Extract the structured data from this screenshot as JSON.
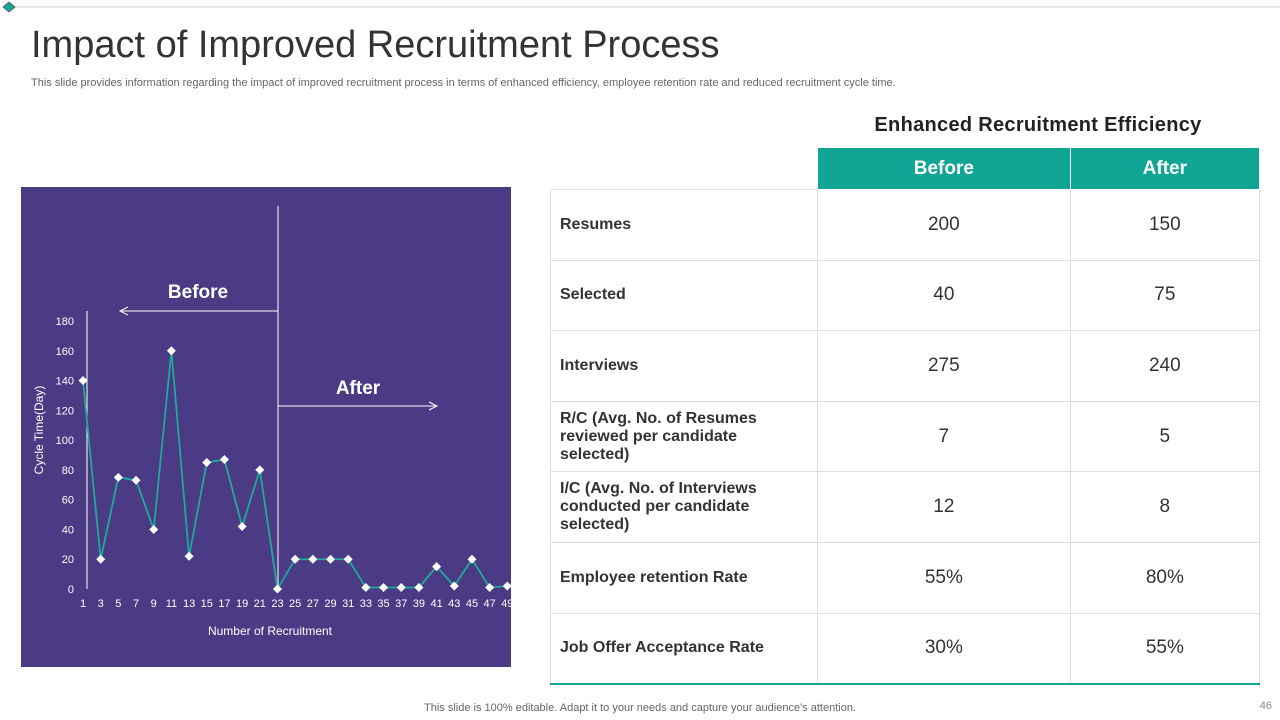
{
  "header": {
    "title": "Impact of Improved Recruitment Process",
    "subtitle": "This slide provides information regarding the impact of improved recruitment process in terms of enhanced efficiency, employee retention rate and reduced recruitment cycle time."
  },
  "chart_data": {
    "type": "line",
    "x_label": "Number of Recruitment",
    "y_label": "Cycle Time(Day)",
    "annotations": [
      "Before",
      "After"
    ],
    "categories": [
      "1",
      "3",
      "5",
      "7",
      "9",
      "11",
      "13",
      "15",
      "17",
      "19",
      "21",
      "23",
      "25",
      "27",
      "29",
      "31",
      "33",
      "35",
      "37",
      "39",
      "41",
      "43",
      "45",
      "47",
      "49"
    ],
    "series": [
      {
        "name": "Cycle Time(Day)",
        "color": "#1fa99c",
        "values": [
          140,
          20,
          75,
          73,
          40,
          160,
          22,
          85,
          87,
          42,
          80,
          0,
          20,
          20,
          20,
          20,
          1,
          1,
          1,
          1,
          15,
          2,
          20,
          1,
          2
        ]
      }
    ],
    "ylim": [
      0,
      180
    ],
    "yticks": [
      0,
      20,
      40,
      60,
      80,
      100,
      120,
      140,
      160,
      180
    ],
    "grid": false
  },
  "table": {
    "title": "Enhanced Recruitment Efficiency",
    "columns": [
      "Before",
      "After"
    ],
    "rows": [
      [
        "Resumes",
        "200",
        "150"
      ],
      [
        "Selected",
        "40",
        "75"
      ],
      [
        "Interviews",
        "275",
        "240"
      ],
      [
        "R/C (Avg. No. of Resumes reviewed per candidate selected)",
        "7",
        "5"
      ],
      [
        "I/C (Avg. No. of Interviews conducted per candidate selected)",
        "12",
        "8"
      ],
      [
        "Employee retention Rate",
        "55%",
        "80%"
      ],
      [
        "Job Offer Acceptance Rate",
        "30%",
        "55%"
      ]
    ]
  },
  "footer": {
    "note": "This slide is 100% editable. Adapt it to your needs and capture your audience's attention.",
    "page": "46"
  }
}
